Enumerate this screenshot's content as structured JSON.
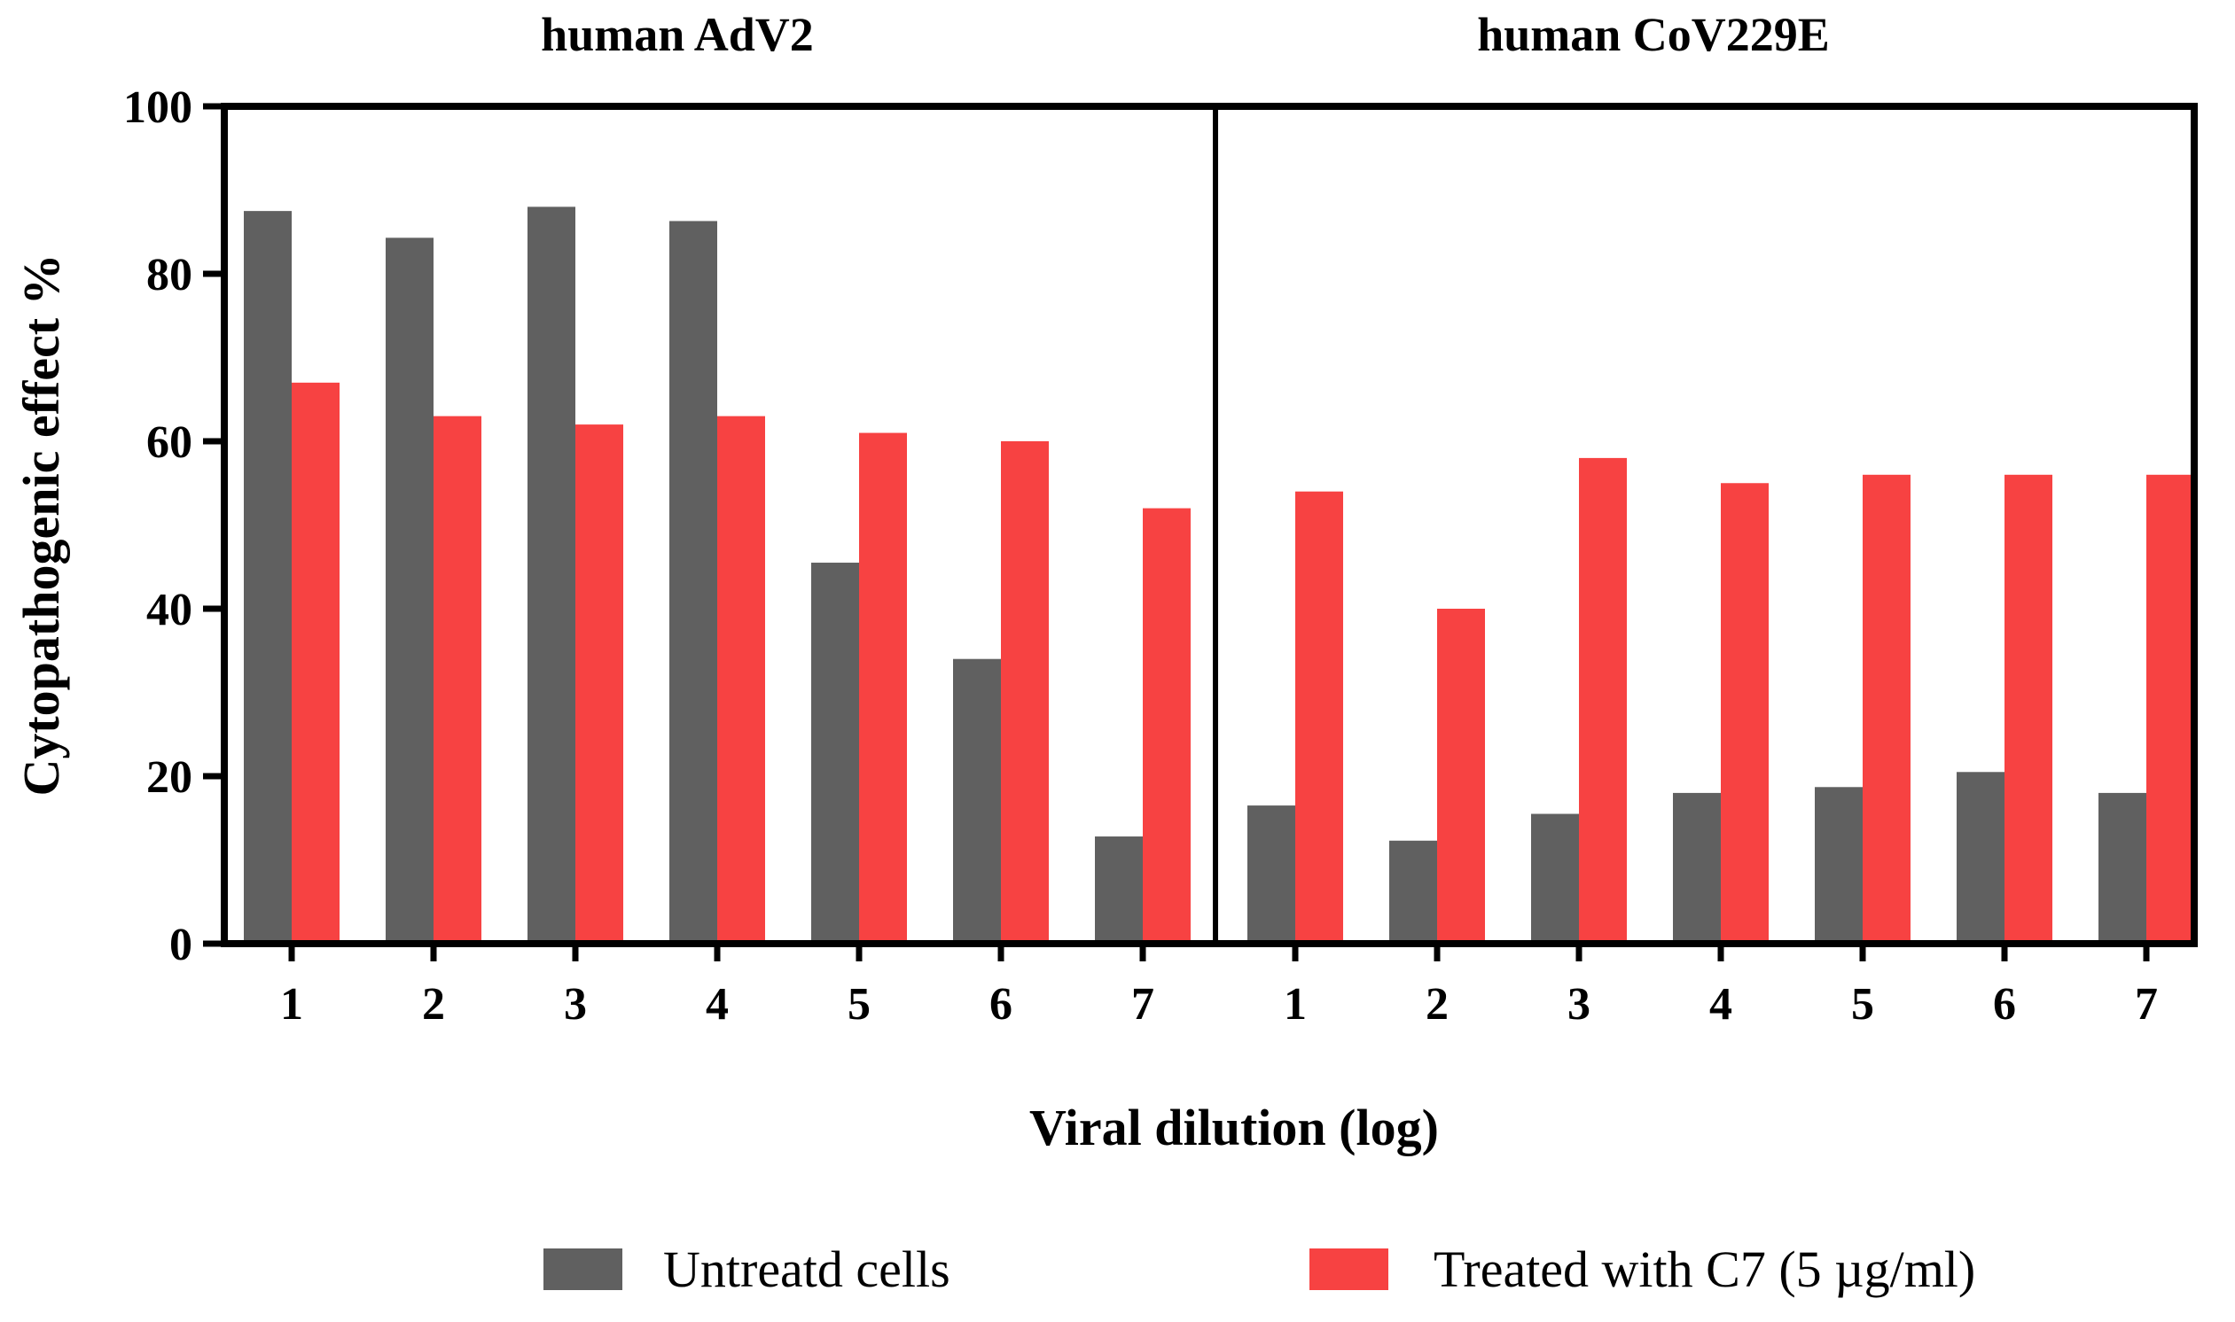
{
  "chart_data": {
    "type": "bar",
    "ylabel": "Cytopathogenic effect %",
    "xlabel": "Viral dilution (log)",
    "ylim": [
      0,
      100
    ],
    "yticks": [
      0,
      20,
      40,
      60,
      80,
      100
    ],
    "grid": false,
    "legend_position": "bottom",
    "series_names": [
      "Untreatd cells",
      "Treated with C7 (5 µg/ml)"
    ],
    "colors": {
      "Untreatd cells": "#606060",
      "Treated with C7 (5 µg/ml)": "#f74242",
      "axis": "#000000"
    },
    "panels": [
      {
        "title": "human AdV2",
        "categories": [
          "1",
          "2",
          "3",
          "4",
          "5",
          "6",
          "7"
        ],
        "series": [
          {
            "name": "Untreatd cells",
            "values": [
              87.5,
              84.3,
              88,
              86.3,
              45.5,
              34,
              12.8
            ]
          },
          {
            "name": "Treated with C7 (5 µg/ml)",
            "values": [
              67,
              63,
              62,
              63,
              61,
              60,
              52
            ]
          }
        ]
      },
      {
        "title": "human CoV229E",
        "categories": [
          "1",
          "2",
          "3",
          "4",
          "5",
          "6",
          "7"
        ],
        "series": [
          {
            "name": "Untreatd cells",
            "values": [
              16.5,
              12.3,
              15.5,
              18,
              18.7,
              20.5,
              18
            ]
          },
          {
            "name": "Treated with C7 (5 µg/ml)",
            "values": [
              54,
              40,
              58,
              55,
              56,
              56,
              56
            ]
          }
        ]
      }
    ]
  }
}
